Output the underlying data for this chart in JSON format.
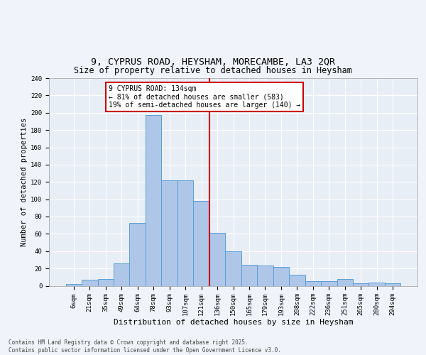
{
  "title1": "9, CYPRUS ROAD, HEYSHAM, MORECAMBE, LA3 2QR",
  "title2": "Size of property relative to detached houses in Heysham",
  "xlabel": "Distribution of detached houses by size in Heysham",
  "ylabel": "Number of detached properties",
  "bins": [
    "6sqm",
    "21sqm",
    "35sqm",
    "49sqm",
    "64sqm",
    "78sqm",
    "93sqm",
    "107sqm",
    "121sqm",
    "136sqm",
    "150sqm",
    "165sqm",
    "179sqm",
    "193sqm",
    "208sqm",
    "222sqm",
    "236sqm",
    "251sqm",
    "265sqm",
    "280sqm",
    "294sqm"
  ],
  "values": [
    2,
    7,
    8,
    26,
    73,
    197,
    122,
    122,
    98,
    61,
    40,
    24,
    23,
    22,
    13,
    5,
    5,
    8,
    3,
    4,
    3
  ],
  "bar_color": "#aec6e8",
  "bar_edge_color": "#5a9fd4",
  "vline_color": "#cc0000",
  "annotation_text": "9 CYPRUS ROAD: 134sqm\n← 81% of detached houses are smaller (583)\n19% of semi-detached houses are larger (140) →",
  "annotation_box_color": "#ffffff",
  "annotation_box_edge": "#cc0000",
  "ylim": [
    0,
    240
  ],
  "yticks": [
    0,
    20,
    40,
    60,
    80,
    100,
    120,
    140,
    160,
    180,
    200,
    220,
    240
  ],
  "background_color": "#e8eef6",
  "fig_background_color": "#f0f4fa",
  "footer_text": "Contains HM Land Registry data © Crown copyright and database right 2025.\nContains public sector information licensed under the Open Government Licence v3.0.",
  "title1_fontsize": 9.5,
  "title2_fontsize": 8.5,
  "xlabel_fontsize": 8,
  "ylabel_fontsize": 7.5,
  "tick_fontsize": 6.5,
  "annotation_fontsize": 7,
  "footer_fontsize": 5.5
}
